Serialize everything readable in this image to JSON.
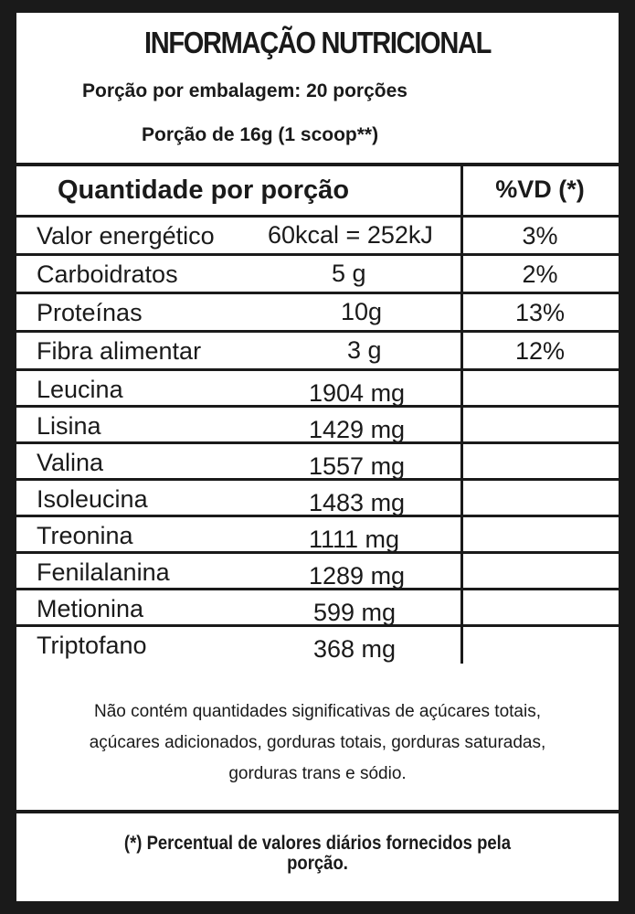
{
  "title": "INFORMAÇÃO NUTRICIONAL",
  "servings_per_package": "Porção por embalagem: 20 porções",
  "serving_size": "Porção de 16g (1 scoop**)",
  "table": {
    "header_quantity": "Quantidade por porção",
    "header_dv": "%VD (*)",
    "rows": [
      {
        "name": "Valor energético",
        "value": "60kcal = 252kJ",
        "dv": "3%"
      },
      {
        "name": "Carboidratos",
        "value": "5 g",
        "dv": "2%"
      },
      {
        "name": "Proteínas",
        "value": "10g",
        "dv": "13%"
      },
      {
        "name": "Fibra alimentar",
        "value": "3 g",
        "dv": "12%"
      },
      {
        "name": "Leucina",
        "value": "1904 mg",
        "dv": ""
      },
      {
        "name": "Lisina",
        "value": "1429 mg",
        "dv": ""
      },
      {
        "name": "Valina",
        "value": "1557 mg",
        "dv": ""
      },
      {
        "name": "Isoleucina",
        "value": "1483 mg",
        "dv": ""
      },
      {
        "name": "Treonina",
        "value": "1111 mg",
        "dv": ""
      },
      {
        "name": "Fenilalanina",
        "value": "1289 mg",
        "dv": ""
      },
      {
        "name": "Metionina",
        "value": "599 mg",
        "dv": ""
      },
      {
        "name": "Triptofano",
        "value": "368 mg",
        "dv": ""
      }
    ]
  },
  "note": [
    "Não contém quantidades significativas de  açúcares totais,",
    "açúcares adicionados, gorduras totais, gorduras saturadas,",
    "gorduras trans e sódio."
  ],
  "footnote": [
    "(*) Percentual de valores diários fornecidos pela",
    "porção."
  ]
}
